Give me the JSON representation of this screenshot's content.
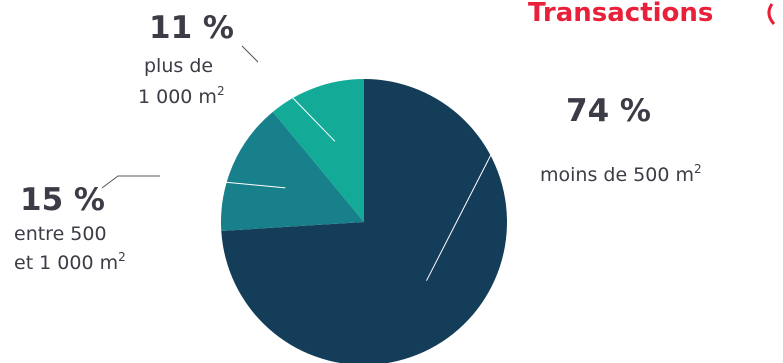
{
  "header": {
    "title_fragment": "Transactions"
  },
  "chart_data": {
    "type": "pie",
    "title": "",
    "slices": [
      {
        "value": 74,
        "percent_label": "74 %",
        "label_lines": [
          "moins de 500 m"
        ],
        "unit_superscript": "2",
        "color": "#133d58"
      },
      {
        "value": 15,
        "percent_label": "15 %",
        "label_lines": [
          "entre 500",
          "et 1 000 m"
        ],
        "unit_superscript": "2",
        "color": "#17808a"
      },
      {
        "value": 11,
        "percent_label": "11 %",
        "label_lines": [
          "plus de",
          "1 000 m"
        ],
        "unit_superscript": "2",
        "color": "#13ab98"
      }
    ]
  }
}
